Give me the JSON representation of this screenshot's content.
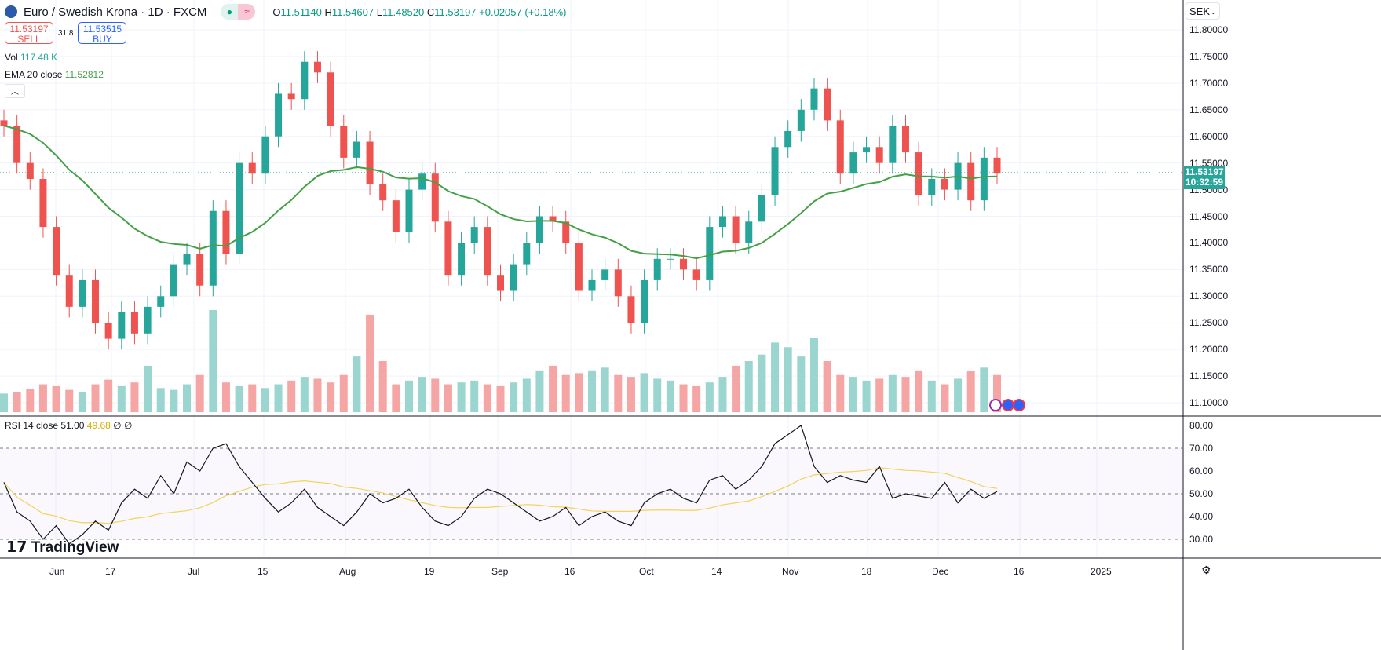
{
  "header": {
    "title": "Euro / Swedish Krona · 1D · FXCM",
    "open_label": "O",
    "open": "11.51140",
    "high_label": "H",
    "high": "11.54607",
    "low_label": "L",
    "low": "11.48520",
    "close_label": "C",
    "close": "11.53197",
    "change": "+0.02057 (+0.18%)"
  },
  "trade": {
    "sell_price": "11.53197",
    "sell_label": "SELL",
    "spread": "31.8",
    "buy_price": "11.53515",
    "buy_label": "BUY"
  },
  "indicators": {
    "vol_label": "Vol",
    "vol_value": "117.48 K",
    "ema_label": "EMA 20 close",
    "ema_value": "11.52812",
    "rsi_label": "RSI 14 close",
    "rsi_value": "51.00",
    "rsi_ma": "49.68",
    "rsi_x1": "∅",
    "rsi_x2": "∅"
  },
  "currency": "SEK",
  "price_tag": {
    "price": "11.53197",
    "countdown": "10:32:59"
  },
  "price_axis": [
    "11.80000",
    "11.75000",
    "11.70000",
    "11.65000",
    "11.60000",
    "11.55000",
    "11.50000",
    "11.45000",
    "11.40000",
    "11.35000",
    "11.30000",
    "11.25000",
    "11.20000",
    "11.15000",
    "11.10000"
  ],
  "rsi_axis": [
    "80.00",
    "70.00",
    "60.00",
    "50.00",
    "40.00",
    "30.00"
  ],
  "time_axis": [
    "Jun",
    "17",
    "Jul",
    "15",
    "Aug",
    "19",
    "Sep",
    "16",
    "Oct",
    "14",
    "Nov",
    "18",
    "Dec",
    "16",
    "2025"
  ],
  "logo": "TradingView",
  "colors": {
    "up": "#26a69a",
    "down": "#ef5350",
    "ema": "#43a047",
    "rsi": "#131722",
    "rsi_ma": "#f2d35b"
  },
  "chart_data": {
    "type": "candlestick",
    "price_range": [
      11.08,
      11.82
    ],
    "closes": [
      11.62,
      11.55,
      11.52,
      11.43,
      11.34,
      11.28,
      11.33,
      11.25,
      11.22,
      11.27,
      11.23,
      11.28,
      11.3,
      11.36,
      11.38,
      11.32,
      11.46,
      11.38,
      11.55,
      11.53,
      11.6,
      11.68,
      11.67,
      11.74,
      11.72,
      11.62,
      11.56,
      11.59,
      11.51,
      11.48,
      11.42,
      11.5,
      11.53,
      11.44,
      11.34,
      11.4,
      11.43,
      11.34,
      11.31,
      11.36,
      11.4,
      11.45,
      11.44,
      11.4,
      11.31,
      11.33,
      11.35,
      11.3,
      11.25,
      11.33,
      11.37,
      11.37,
      11.35,
      11.33,
      11.43,
      11.45,
      11.4,
      11.44,
      11.49,
      11.58,
      11.61,
      11.65,
      11.69,
      11.63,
      11.53,
      11.57,
      11.58,
      11.55,
      11.62,
      11.57,
      11.49,
      11.52,
      11.5,
      11.55,
      11.48,
      11.56,
      11.53
    ],
    "volumes": [
      20,
      22,
      25,
      30,
      28,
      24,
      22,
      30,
      35,
      28,
      32,
      50,
      26,
      24,
      30,
      40,
      110,
      32,
      28,
      30,
      26,
      30,
      34,
      38,
      36,
      32,
      40,
      60,
      105,
      55,
      30,
      34,
      38,
      36,
      30,
      32,
      34,
      30,
      28,
      32,
      36,
      45,
      50,
      40,
      42,
      45,
      48,
      40,
      38,
      42,
      36,
      34,
      30,
      28,
      32,
      38,
      50,
      55,
      62,
      75,
      70,
      60,
      80,
      55,
      40,
      38,
      34,
      36,
      40,
      38,
      45,
      34,
      30,
      36,
      44,
      48,
      40
    ],
    "rsi": [
      55,
      42,
      38,
      30,
      36,
      28,
      32,
      38,
      34,
      46,
      52,
      48,
      58,
      50,
      64,
      60,
      70,
      72,
      62,
      55,
      48,
      42,
      46,
      52,
      44,
      40,
      36,
      42,
      50,
      46,
      48,
      52,
      44,
      38,
      36,
      40,
      48,
      52,
      50,
      46,
      42,
      38,
      40,
      44,
      36,
      40,
      42,
      38,
      36,
      46,
      50,
      52,
      48,
      46,
      56,
      58,
      52,
      56,
      62,
      72,
      76,
      80,
      62,
      55,
      58,
      56,
      55,
      62,
      48,
      50,
      49,
      48,
      55,
      46,
      52,
      48,
      51
    ]
  }
}
